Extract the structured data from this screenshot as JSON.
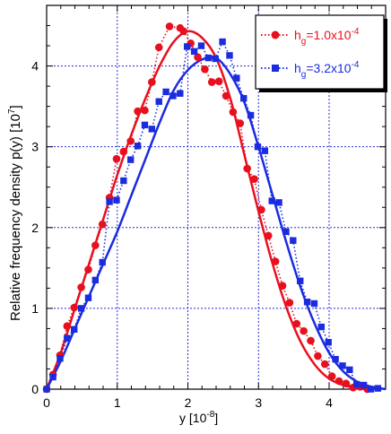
{
  "chart_data": {
    "type": "scatter",
    "xlabel": "y [10",
    "xlabel_exp": "-8",
    "xlabel_close": "]",
    "ylabel": "Relative frequency density p(y) [10",
    "ylabel_exp": "7",
    "ylabel_close": "]",
    "xlim": [
      0,
      4.8
    ],
    "ylim": [
      0,
      4.75
    ],
    "xticks": [
      0,
      1,
      2,
      3,
      4
    ],
    "yticks": [
      0,
      1,
      2,
      3,
      4
    ],
    "grid": true,
    "legend_position": "top-right",
    "series": [
      {
        "legend_base": "h",
        "legend_sub": "g",
        "legend_value": "=1.0x10",
        "legend_exp": "-4",
        "color": "#e8101e",
        "marker": "circle",
        "points": [
          [
            0.0,
            0.0
          ],
          [
            0.09,
            0.18
          ],
          [
            0.19,
            0.42
          ],
          [
            0.29,
            0.78
          ],
          [
            0.39,
            1.01
          ],
          [
            0.49,
            1.26
          ],
          [
            0.59,
            1.48
          ],
          [
            0.69,
            1.78
          ],
          [
            0.79,
            2.04
          ],
          [
            0.89,
            2.37
          ],
          [
            0.99,
            2.85
          ],
          [
            1.09,
            2.94
          ],
          [
            1.19,
            3.07
          ],
          [
            1.29,
            3.44
          ],
          [
            1.39,
            3.45
          ],
          [
            1.49,
            3.8
          ],
          [
            1.59,
            4.23
          ],
          [
            1.74,
            4.49
          ],
          [
            1.89,
            4.47
          ],
          [
            1.94,
            4.43
          ],
          [
            2.04,
            4.28
          ],
          [
            2.14,
            4.11
          ],
          [
            2.24,
            3.96
          ],
          [
            2.34,
            3.8
          ],
          [
            2.44,
            3.81
          ],
          [
            2.54,
            3.63
          ],
          [
            2.64,
            3.43
          ],
          [
            2.74,
            3.29
          ],
          [
            2.84,
            2.73
          ],
          [
            2.94,
            2.6
          ],
          [
            3.04,
            2.22
          ],
          [
            3.14,
            1.9
          ],
          [
            3.24,
            1.58
          ],
          [
            3.34,
            1.28
          ],
          [
            3.44,
            1.07
          ],
          [
            3.54,
            0.81
          ],
          [
            3.64,
            0.72
          ],
          [
            3.74,
            0.6
          ],
          [
            3.84,
            0.41
          ],
          [
            3.94,
            0.31
          ],
          [
            4.04,
            0.16
          ],
          [
            4.14,
            0.1
          ],
          [
            4.24,
            0.07
          ],
          [
            4.34,
            0.02
          ],
          [
            4.44,
            0.03
          ],
          [
            4.54,
            0.0
          ]
        ],
        "fit": [
          [
            0.0,
            0.0
          ],
          [
            0.2,
            0.45
          ],
          [
            0.4,
            1.0
          ],
          [
            0.6,
            1.55
          ],
          [
            0.8,
            2.1
          ],
          [
            1.0,
            2.65
          ],
          [
            1.2,
            3.15
          ],
          [
            1.4,
            3.6
          ],
          [
            1.6,
            4.0
          ],
          [
            1.8,
            4.3
          ],
          [
            2.0,
            4.43
          ],
          [
            2.2,
            4.35
          ],
          [
            2.4,
            4.1
          ],
          [
            2.6,
            3.6
          ],
          [
            2.8,
            2.9
          ],
          [
            3.0,
            2.2
          ],
          [
            3.2,
            1.55
          ],
          [
            3.4,
            1.0
          ],
          [
            3.6,
            0.58
          ],
          [
            3.8,
            0.3
          ],
          [
            4.0,
            0.13
          ],
          [
            4.2,
            0.05
          ],
          [
            4.4,
            0.01
          ],
          [
            4.55,
            0.0
          ]
        ]
      },
      {
        "legend_base": "h",
        "legend_sub": "g",
        "legend_value": "=3.2x10",
        "legend_exp": "-4",
        "color": "#1a2be0",
        "marker": "square",
        "points": [
          [
            0.0,
            0.0
          ],
          [
            0.09,
            0.15
          ],
          [
            0.19,
            0.38
          ],
          [
            0.29,
            0.63
          ],
          [
            0.39,
            0.74
          ],
          [
            0.49,
            1.0
          ],
          [
            0.59,
            1.13
          ],
          [
            0.69,
            1.35
          ],
          [
            0.79,
            1.57
          ],
          [
            0.89,
            2.32
          ],
          [
            0.99,
            2.34
          ],
          [
            1.09,
            2.58
          ],
          [
            1.19,
            2.84
          ],
          [
            1.29,
            3.01
          ],
          [
            1.39,
            3.27
          ],
          [
            1.49,
            3.22
          ],
          [
            1.59,
            3.56
          ],
          [
            1.69,
            3.68
          ],
          [
            1.79,
            3.63
          ],
          [
            1.89,
            3.66
          ],
          [
            1.99,
            4.24
          ],
          [
            2.09,
            4.18
          ],
          [
            2.19,
            4.25
          ],
          [
            2.29,
            4.1
          ],
          [
            2.39,
            4.09
          ],
          [
            2.49,
            4.3
          ],
          [
            2.59,
            4.13
          ],
          [
            2.69,
            3.85
          ],
          [
            2.79,
            3.6
          ],
          [
            2.89,
            3.39
          ],
          [
            2.99,
            3.0
          ],
          [
            3.09,
            2.95
          ],
          [
            3.19,
            2.33
          ],
          [
            3.29,
            2.31
          ],
          [
            3.39,
            1.95
          ],
          [
            3.49,
            1.84
          ],
          [
            3.59,
            1.34
          ],
          [
            3.69,
            1.08
          ],
          [
            3.79,
            1.06
          ],
          [
            3.89,
            0.77
          ],
          [
            3.99,
            0.58
          ],
          [
            4.09,
            0.37
          ],
          [
            4.19,
            0.29
          ],
          [
            4.29,
            0.24
          ],
          [
            4.39,
            0.06
          ],
          [
            4.49,
            0.05
          ],
          [
            4.59,
            0.0
          ],
          [
            4.69,
            0.01
          ]
        ],
        "fit": [
          [
            0.0,
            0.0
          ],
          [
            0.2,
            0.35
          ],
          [
            0.4,
            0.75
          ],
          [
            0.6,
            1.15
          ],
          [
            0.8,
            1.55
          ],
          [
            1.0,
            1.95
          ],
          [
            1.2,
            2.4
          ],
          [
            1.4,
            2.85
          ],
          [
            1.6,
            3.3
          ],
          [
            1.8,
            3.7
          ],
          [
            2.0,
            3.95
          ],
          [
            2.2,
            4.08
          ],
          [
            2.4,
            4.1
          ],
          [
            2.6,
            3.9
          ],
          [
            2.8,
            3.55
          ],
          [
            3.0,
            3.0
          ],
          [
            3.2,
            2.4
          ],
          [
            3.4,
            1.8
          ],
          [
            3.6,
            1.25
          ],
          [
            3.8,
            0.8
          ],
          [
            4.0,
            0.45
          ],
          [
            4.2,
            0.22
          ],
          [
            4.4,
            0.09
          ],
          [
            4.6,
            0.03
          ],
          [
            4.8,
            0.0
          ]
        ]
      }
    ]
  }
}
